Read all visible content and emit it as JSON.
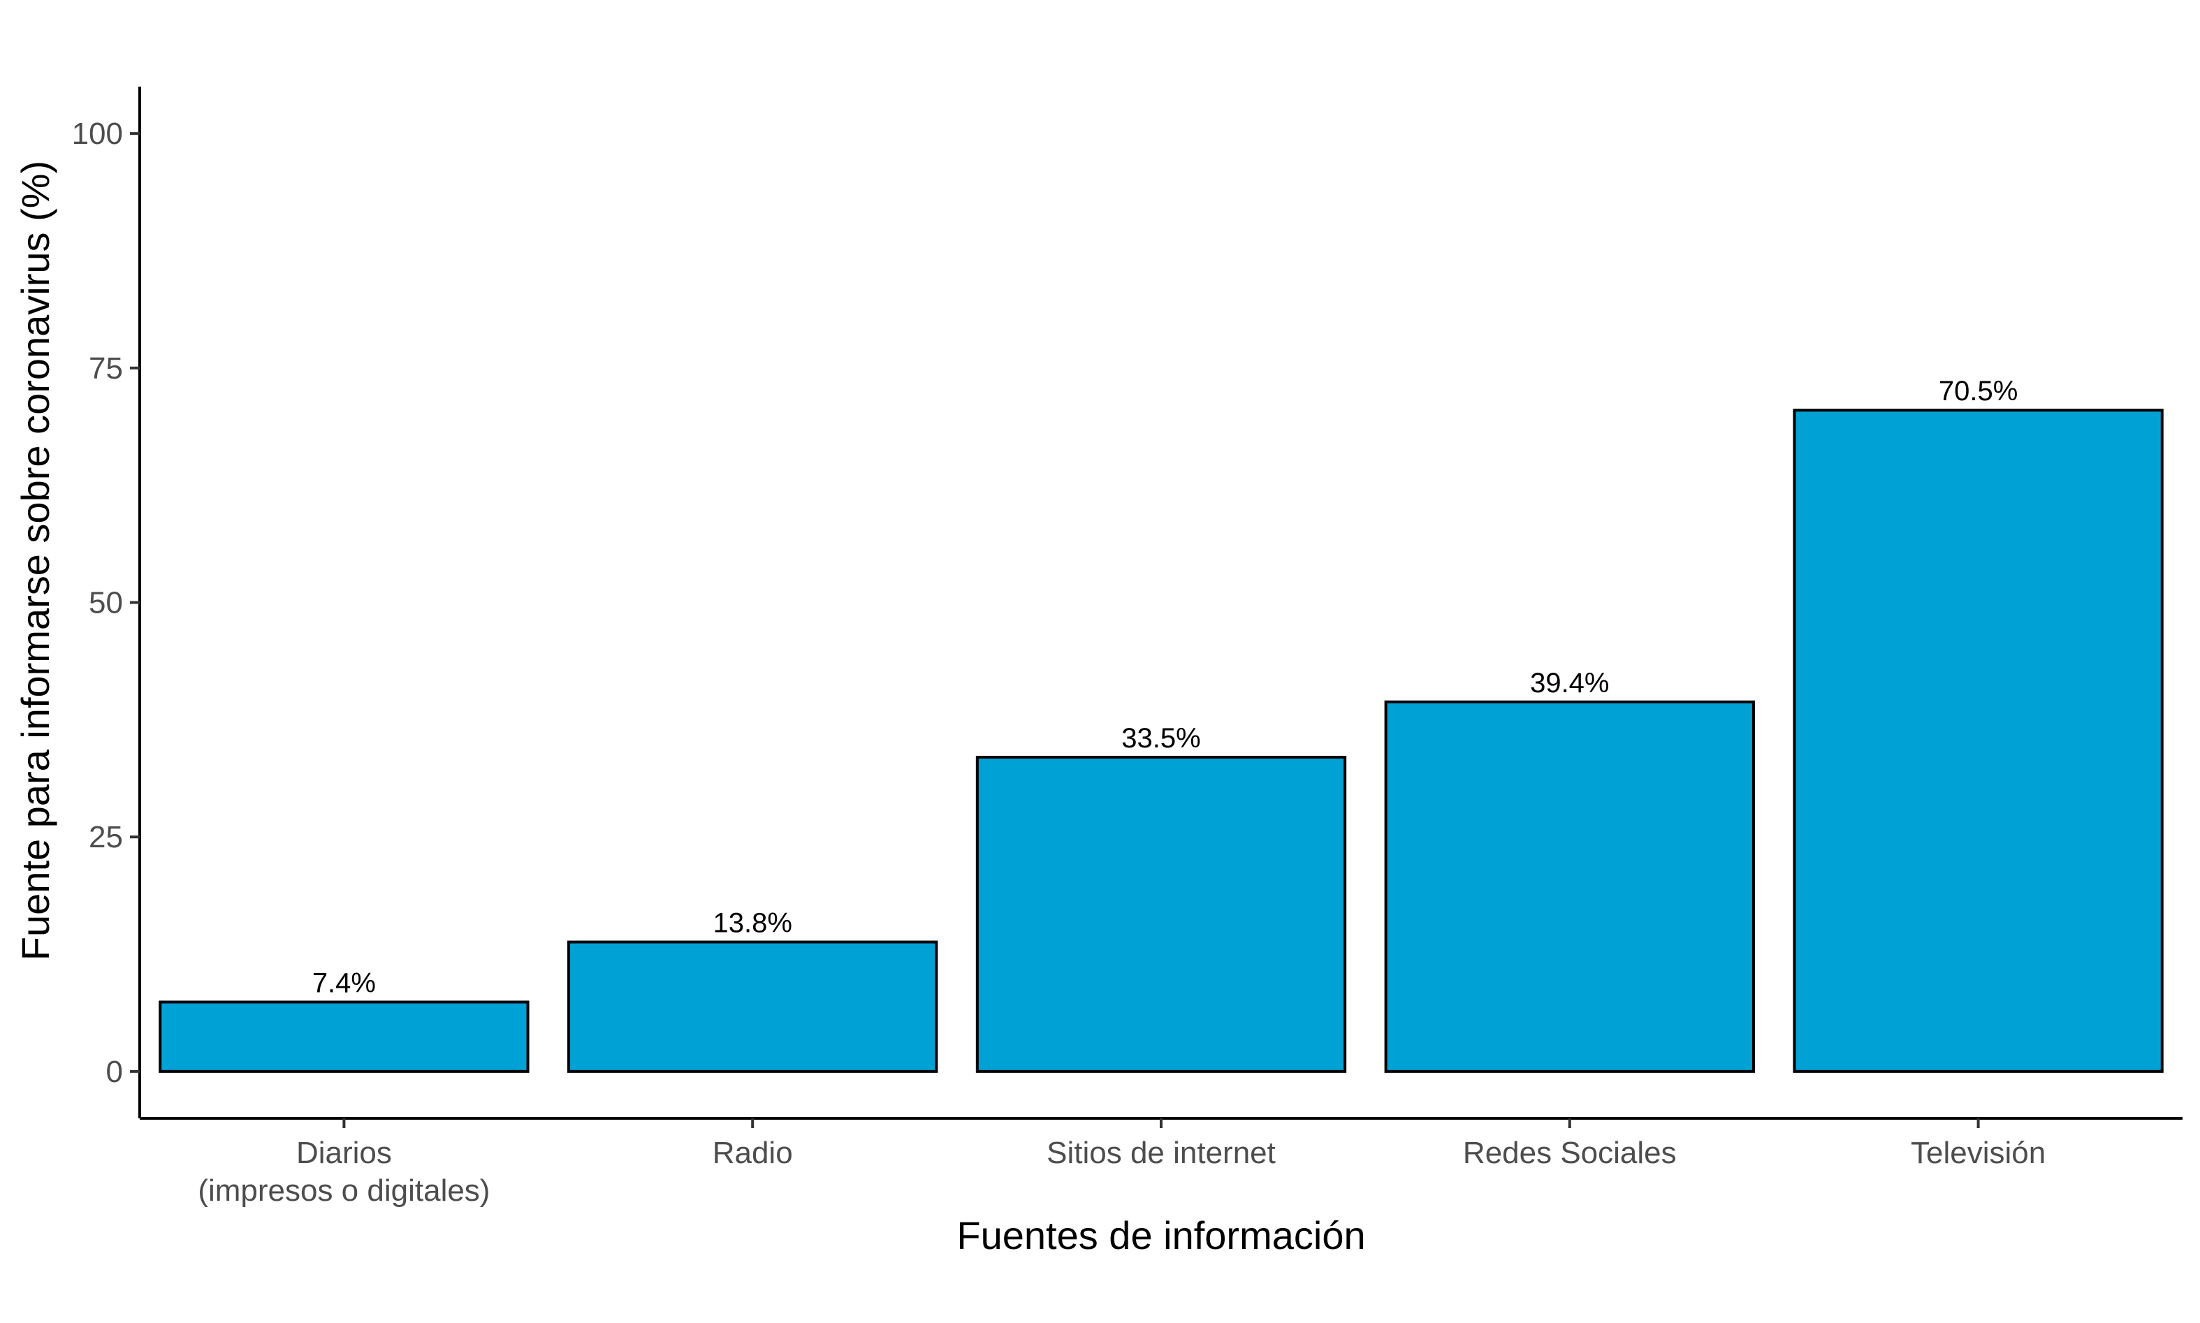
{
  "chart_data": {
    "type": "bar",
    "title": "",
    "xlabel": "Fuentes de información",
    "ylabel": "Fuente para informarse sobre coronavirus (%)",
    "ylim": [
      -5,
      105
    ],
    "yticks": [
      0,
      25,
      50,
      75,
      100
    ],
    "grid": false,
    "legend": "none",
    "categories": [
      [
        "Diarios",
        "(impresos o digitales)"
      ],
      [
        "Radio"
      ],
      [
        "Sitios de internet"
      ],
      [
        "Redes Sociales"
      ],
      [
        "Televisión"
      ]
    ],
    "values": [
      7.4,
      13.8,
      33.5,
      39.4,
      70.5
    ],
    "data_labels": [
      "7.4%",
      "13.8%",
      "33.5%",
      "39.4%",
      "70.5%"
    ],
    "colors": {
      "bar_fill": "#00A1D5",
      "bar_outline": "#000000",
      "tick_text": "#4d4d4d",
      "title_text": "#000000"
    }
  }
}
